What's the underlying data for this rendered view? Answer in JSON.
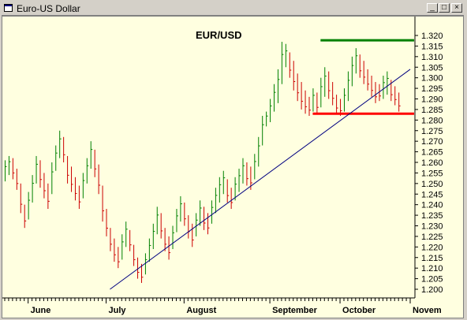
{
  "window": {
    "title": "Euro-US Dollar",
    "buttons": {
      "minimize": "_",
      "maximize": "□",
      "close": "×"
    }
  },
  "chart_data": {
    "type": "ohlc",
    "title": "EUR/USD",
    "y_ticks": [
      "1.320",
      "1.315",
      "1.310",
      "1.305",
      "1.300",
      "1.295",
      "1.290",
      "1.285",
      "1.280",
      "1.275",
      "1.270",
      "1.265",
      "1.260",
      "1.255",
      "1.250",
      "1.245",
      "1.240",
      "1.235",
      "1.230",
      "1.225",
      "1.220",
      "1.215",
      "1.210",
      "1.205",
      "1.200"
    ],
    "ylim": [
      1.196,
      1.322
    ],
    "x_months": [
      "June",
      "July",
      "August",
      "September",
      "October",
      "Novem"
    ],
    "xlim": [
      0,
      104
    ],
    "month_starts": [
      6,
      26,
      46,
      68,
      86,
      104
    ],
    "bars": [
      [
        1.261,
        1.251
      ],
      [
        1.263,
        1.254
      ],
      [
        1.262,
        1.252
      ],
      [
        1.257,
        1.247
      ],
      [
        1.25,
        1.236
      ],
      [
        1.24,
        1.229
      ],
      [
        1.246,
        1.233
      ],
      [
        1.254,
        1.241
      ],
      [
        1.263,
        1.25
      ],
      [
        1.261,
        1.248
      ],
      [
        1.255,
        1.243
      ],
      [
        1.25,
        1.238
      ],
      [
        1.26,
        1.245
      ],
      [
        1.268,
        1.256
      ],
      [
        1.275,
        1.262
      ],
      [
        1.272,
        1.26
      ],
      [
        1.263,
        1.25
      ],
      [
        1.258,
        1.246
      ],
      [
        1.253,
        1.242
      ],
      [
        1.249,
        1.238
      ],
      [
        1.255,
        1.243
      ],
      [
        1.262,
        1.25
      ],
      [
        1.27,
        1.257
      ],
      [
        1.266,
        1.253
      ],
      [
        1.259,
        1.245
      ],
      [
        1.249,
        1.232
      ],
      [
        1.238,
        1.225
      ],
      [
        1.229,
        1.218
      ],
      [
        1.224,
        1.213
      ],
      [
        1.22,
        1.21
      ],
      [
        1.226,
        1.214
      ],
      [
        1.232,
        1.22
      ],
      [
        1.228,
        1.218
      ],
      [
        1.221,
        1.211
      ],
      [
        1.215,
        1.205
      ],
      [
        1.212,
        1.203
      ],
      [
        1.217,
        1.207
      ],
      [
        1.224,
        1.213
      ],
      [
        1.231,
        1.219
      ],
      [
        1.239,
        1.226
      ],
      [
        1.236,
        1.224
      ],
      [
        1.229,
        1.218
      ],
      [
        1.225,
        1.214
      ],
      [
        1.23,
        1.219
      ],
      [
        1.238,
        1.227
      ],
      [
        1.244,
        1.232
      ],
      [
        1.241,
        1.23
      ],
      [
        1.235,
        1.224
      ],
      [
        1.231,
        1.22
      ],
      [
        1.236,
        1.225
      ],
      [
        1.242,
        1.23
      ],
      [
        1.239,
        1.228
      ],
      [
        1.236,
        1.226
      ],
      [
        1.242,
        1.231
      ],
      [
        1.248,
        1.236
      ],
      [
        1.253,
        1.241
      ],
      [
        1.256,
        1.245
      ],
      [
        1.252,
        1.241
      ],
      [
        1.248,
        1.238
      ],
      [
        1.253,
        1.242
      ],
      [
        1.257,
        1.246
      ],
      [
        1.262,
        1.25
      ],
      [
        1.26,
        1.249
      ],
      [
        1.258,
        1.247
      ],
      [
        1.264,
        1.252
      ],
      [
        1.272,
        1.258
      ],
      [
        1.282,
        1.268
      ],
      [
        1.284,
        1.277
      ],
      [
        1.29,
        1.279
      ],
      [
        1.297,
        1.284
      ],
      [
        1.304,
        1.288
      ],
      [
        1.317,
        1.297
      ],
      [
        1.316,
        1.305
      ],
      [
        1.312,
        1.3
      ],
      [
        1.308,
        1.294
      ],
      [
        1.302,
        1.289
      ],
      [
        1.298,
        1.285
      ],
      [
        1.294,
        1.283
      ],
      [
        1.291,
        1.282
      ],
      [
        1.295,
        1.284
      ],
      [
        1.293,
        1.283
      ],
      [
        1.3,
        1.286
      ],
      [
        1.305,
        1.291
      ],
      [
        1.303,
        1.29
      ],
      [
        1.298,
        1.287
      ],
      [
        1.292,
        1.283
      ],
      [
        1.29,
        1.282
      ],
      [
        1.295,
        1.284
      ],
      [
        1.303,
        1.289
      ],
      [
        1.31,
        1.296
      ],
      [
        1.314,
        1.302
      ],
      [
        1.311,
        1.3
      ],
      [
        1.308,
        1.297
      ],
      [
        1.304,
        1.294
      ],
      [
        1.301,
        1.291
      ],
      [
        1.298,
        1.288
      ],
      [
        1.297,
        1.289
      ],
      [
        1.301,
        1.29
      ],
      [
        1.303,
        1.292
      ],
      [
        1.299,
        1.289
      ],
      [
        1.296,
        1.287
      ],
      [
        1.293,
        1.284
      ]
    ],
    "lines": [
      {
        "kind": "resistance",
        "color": "#008000",
        "x": [
          81,
          105
        ],
        "y": [
          1.3177,
          1.3177
        ]
      },
      {
        "kind": "support",
        "color": "#ff0000",
        "x": [
          79,
          105
        ],
        "y": [
          1.283,
          1.283
        ]
      },
      {
        "kind": "trendline",
        "color": "#000080",
        "x": [
          27,
          104
        ],
        "y": [
          1.2,
          1.304
        ]
      }
    ],
    "grid": false,
    "legend": "none"
  }
}
